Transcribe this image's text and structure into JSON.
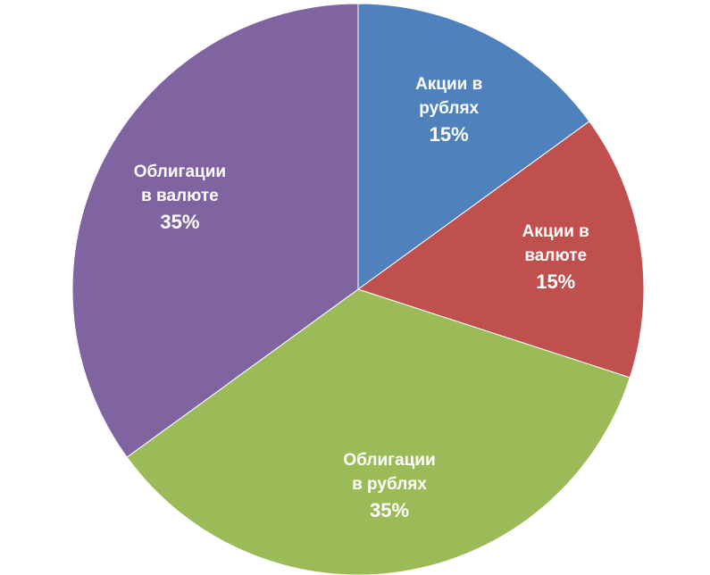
{
  "chart_data": {
    "type": "pie",
    "categories": [
      "Акции в рублях",
      "Акции в валюте",
      "Облигации в рублях",
      "Облигации в валюте"
    ],
    "values": [
      15,
      15,
      35,
      35
    ],
    "value_labels": [
      "15%",
      "15%",
      "35%",
      "35%"
    ],
    "colors": [
      "#4f81bd",
      "#c0504d",
      "#9bbb59",
      "#8064a2"
    ]
  }
}
